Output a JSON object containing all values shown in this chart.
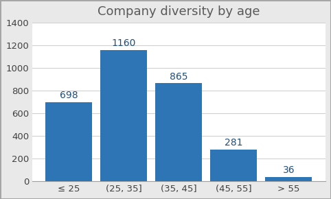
{
  "title": "Company diversity by age",
  "categories": [
    "≤ 25",
    "(25, 35]",
    "(35, 45]",
    "(45, 55]",
    "> 55"
  ],
  "values": [
    698,
    1160,
    865,
    281,
    36
  ],
  "bar_color": "#2E75B6",
  "ylim": [
    0,
    1400
  ],
  "yticks": [
    0,
    200,
    400,
    600,
    800,
    1000,
    1200,
    1400
  ],
  "bar_labels": [
    "698",
    "1160",
    "865",
    "281",
    "36"
  ],
  "label_color": "#1F4E79",
  "plot_bg_color": "#ffffff",
  "fig_bg_color": "#e9e9e9",
  "grid_color": "#d0d0d0",
  "border_color": "#a6a6a6",
  "title_fontsize": 13,
  "tick_fontsize": 9.5,
  "label_fontsize": 10,
  "title_color": "#595959"
}
